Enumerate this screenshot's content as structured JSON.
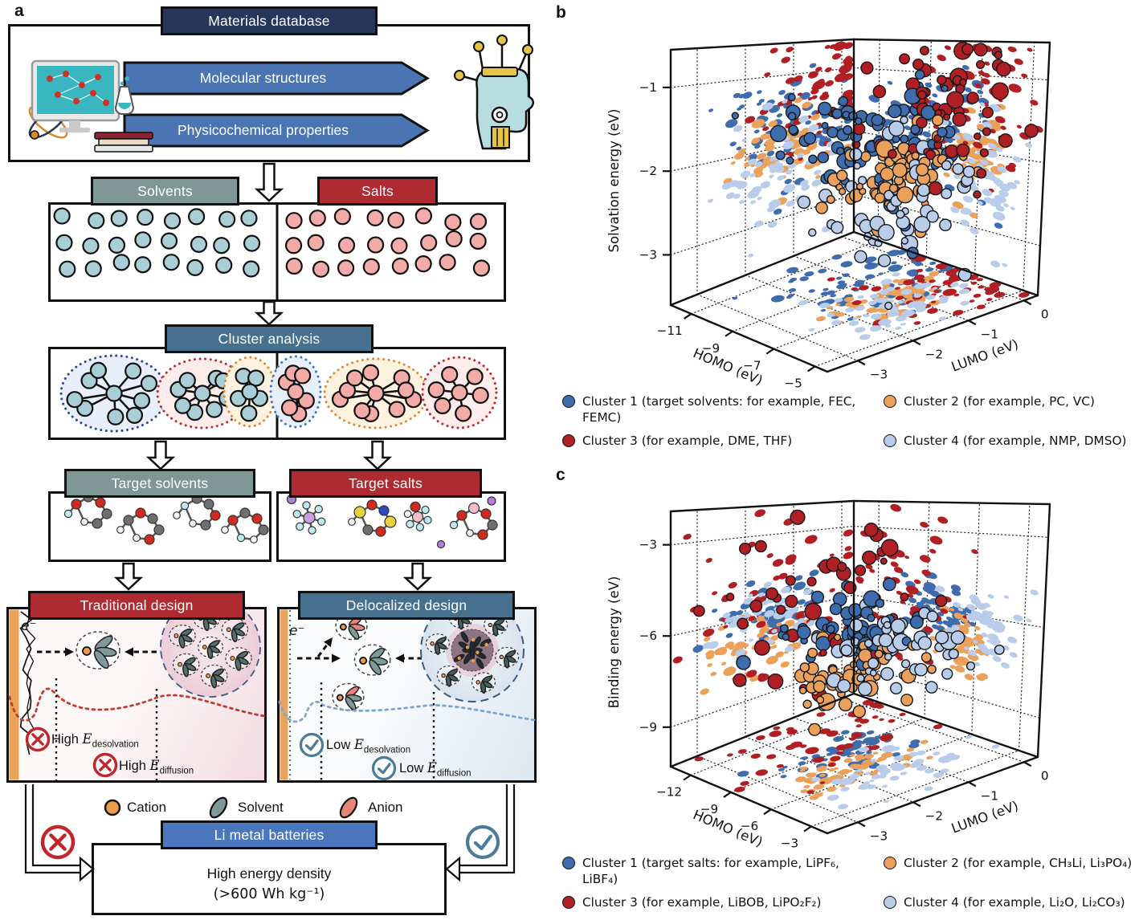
{
  "figure": {
    "panel_a": "a",
    "panel_b": "b",
    "panel_c": "c"
  },
  "colors": {
    "navy": "#27375c",
    "banner_blue": "#4a74b2",
    "sage": "#7e9694",
    "dark_red": "#ae2b32",
    "steel": "#47708e",
    "bright_blue": "#4a77bd",
    "solvent_dot": "#a9ced6",
    "salt_dot": "#f2aba6",
    "cation": "#eb9b50",
    "solvent_ellipse": "#7e9a98",
    "anion": "#e8837a",
    "cross_red": "#c0272d",
    "check_blue": "#4a7b99",
    "cluster_blue": "#3e6cac",
    "cluster_orange": "#eba15c",
    "cluster_red": "#b01f24",
    "cluster_lightblue": "#b9cce9"
  },
  "flowchart": {
    "materials_database": "Materials database",
    "molecular_structures": "Molecular structures",
    "physicochemical_properties": "Physicochemical properties",
    "solvents": "Solvents",
    "salts": "Salts",
    "cluster_analysis": "Cluster analysis",
    "target_solvents": "Target solvents",
    "target_salts": "Target salts",
    "traditional_design": "Traditional design",
    "delocalized_design": "Delocalized design",
    "electron": "e⁻",
    "labels": {
      "high_desolvation": {
        "prefix": "High ",
        "symbol": "E",
        "subscript": "desolvation"
      },
      "high_diffusion": {
        "prefix": "High ",
        "symbol": "E",
        "subscript": "diffusion"
      },
      "low_desolvation": {
        "prefix": "Low ",
        "symbol": "E",
        "subscript": "desolvation"
      },
      "low_diffusion": {
        "prefix": "Low ",
        "symbol": "E",
        "subscript": "diffusion"
      }
    },
    "species_legend": {
      "cation": "Cation",
      "solvent": "Solvent",
      "anion": "Anion"
    },
    "battery": {
      "header": "Li metal batteries",
      "line1": "High energy density",
      "line2": "(>600 Wh kg⁻¹)"
    }
  },
  "chart_data": [
    {
      "panel": "b",
      "type": "scatter",
      "projection": "3d",
      "xlabel": "HOMO (eV)",
      "ylabel": "LUMO (eV)",
      "zlabel": "Solvation energy (eV)",
      "x_ticks": [
        -11,
        -9,
        -7,
        -5
      ],
      "y_ticks": [
        -3,
        -2,
        -1,
        0
      ],
      "z_ticks": [
        -1,
        -2,
        -3
      ],
      "x_range": [
        -12,
        -4.4
      ],
      "y_range": [
        -3.55,
        0.25
      ],
      "z_range": [
        -3.6,
        -0.55
      ],
      "grid": true,
      "wall_projections": true,
      "clusters": [
        {
          "label": "Cluster 1 (target solvents: for example, FEC, FEMC)",
          "color": "#3e6cac",
          "count": 78,
          "center": [
            -8.6,
            -1.05,
            -1.72
          ],
          "spread": [
            1.15,
            0.72,
            0.4
          ],
          "seed": 101
        },
        {
          "label": "Cluster 2 (for example, PC, VC)",
          "color": "#eba15c",
          "count": 72,
          "center": [
            -7.25,
            -1.1,
            -2.02
          ],
          "spread": [
            0.6,
            0.5,
            0.27
          ],
          "seed": 202
        },
        {
          "label": "Cluster 3 (for example, DME, THF)",
          "color": "#b01f24",
          "count": 62,
          "center": [
            -6.6,
            -0.55,
            -1.3
          ],
          "spread": [
            1.15,
            0.72,
            0.5
          ],
          "seed": 303
        },
        {
          "label": "Cluster 4 (for example, NMP, DMSO)",
          "color": "#b9cce9",
          "count": 62,
          "center": [
            -6.9,
            -1.45,
            -2.38
          ],
          "spread": [
            0.75,
            0.6,
            0.33
          ],
          "seed": 404
        }
      ]
    },
    {
      "panel": "c",
      "type": "scatter",
      "projection": "3d",
      "xlabel": "HOMO (eV)",
      "ylabel": "LUMO (eV)",
      "zlabel": "Binding energy (eV)",
      "x_ticks": [
        -12,
        -9,
        -6,
        -3
      ],
      "y_ticks": [
        -3,
        -2,
        -1,
        0
      ],
      "z_ticks": [
        -3,
        -6,
        -9
      ],
      "x_range": [
        -13.5,
        -1.8
      ],
      "y_range": [
        -3.55,
        0.25
      ],
      "z_range": [
        -10.3,
        -1.9
      ],
      "grid": true,
      "wall_projections": true,
      "clusters": [
        {
          "label": "Cluster 1 (target salts: for example, LiPF₆, LiBF₄)",
          "color": "#3e6cac",
          "count": 55,
          "center": [
            -8.3,
            -1.55,
            -5.85
          ],
          "spread": [
            0.95,
            0.6,
            0.6
          ],
          "seed": 505
        },
        {
          "label": "Cluster 2 (for example, CH₃Li, Li₃PO₄)",
          "color": "#eba15c",
          "count": 55,
          "center": [
            -6.6,
            -1.8,
            -7.05
          ],
          "spread": [
            1.0,
            0.55,
            0.6
          ],
          "seed": 606
        },
        {
          "label": "Cluster 3 (for example, LiBOB, LiPO₂F₂)",
          "color": "#b01f24",
          "count": 48,
          "center": [
            -10.1,
            -1.15,
            -5.3
          ],
          "spread": [
            1.9,
            0.95,
            1.6
          ],
          "seed": 707
        },
        {
          "label": "Cluster 4 (for example, Li₂O, Li₂CO₃)",
          "color": "#b9cce9",
          "count": 50,
          "center": [
            -5.4,
            -1.2,
            -6.3
          ],
          "spread": [
            1.15,
            0.7,
            0.6
          ],
          "seed": 808
        }
      ]
    }
  ]
}
